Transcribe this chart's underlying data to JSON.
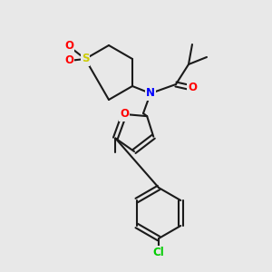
{
  "bg_color": "#e8e8e8",
  "bond_color": "#1a1a1a",
  "bond_lw": 1.5,
  "atom_colors": {
    "N": "#0000ff",
    "O": "#ff0000",
    "S": "#cccc00",
    "Cl": "#00cc00",
    "C": "#1a1a1a"
  },
  "font_size": 8.5
}
